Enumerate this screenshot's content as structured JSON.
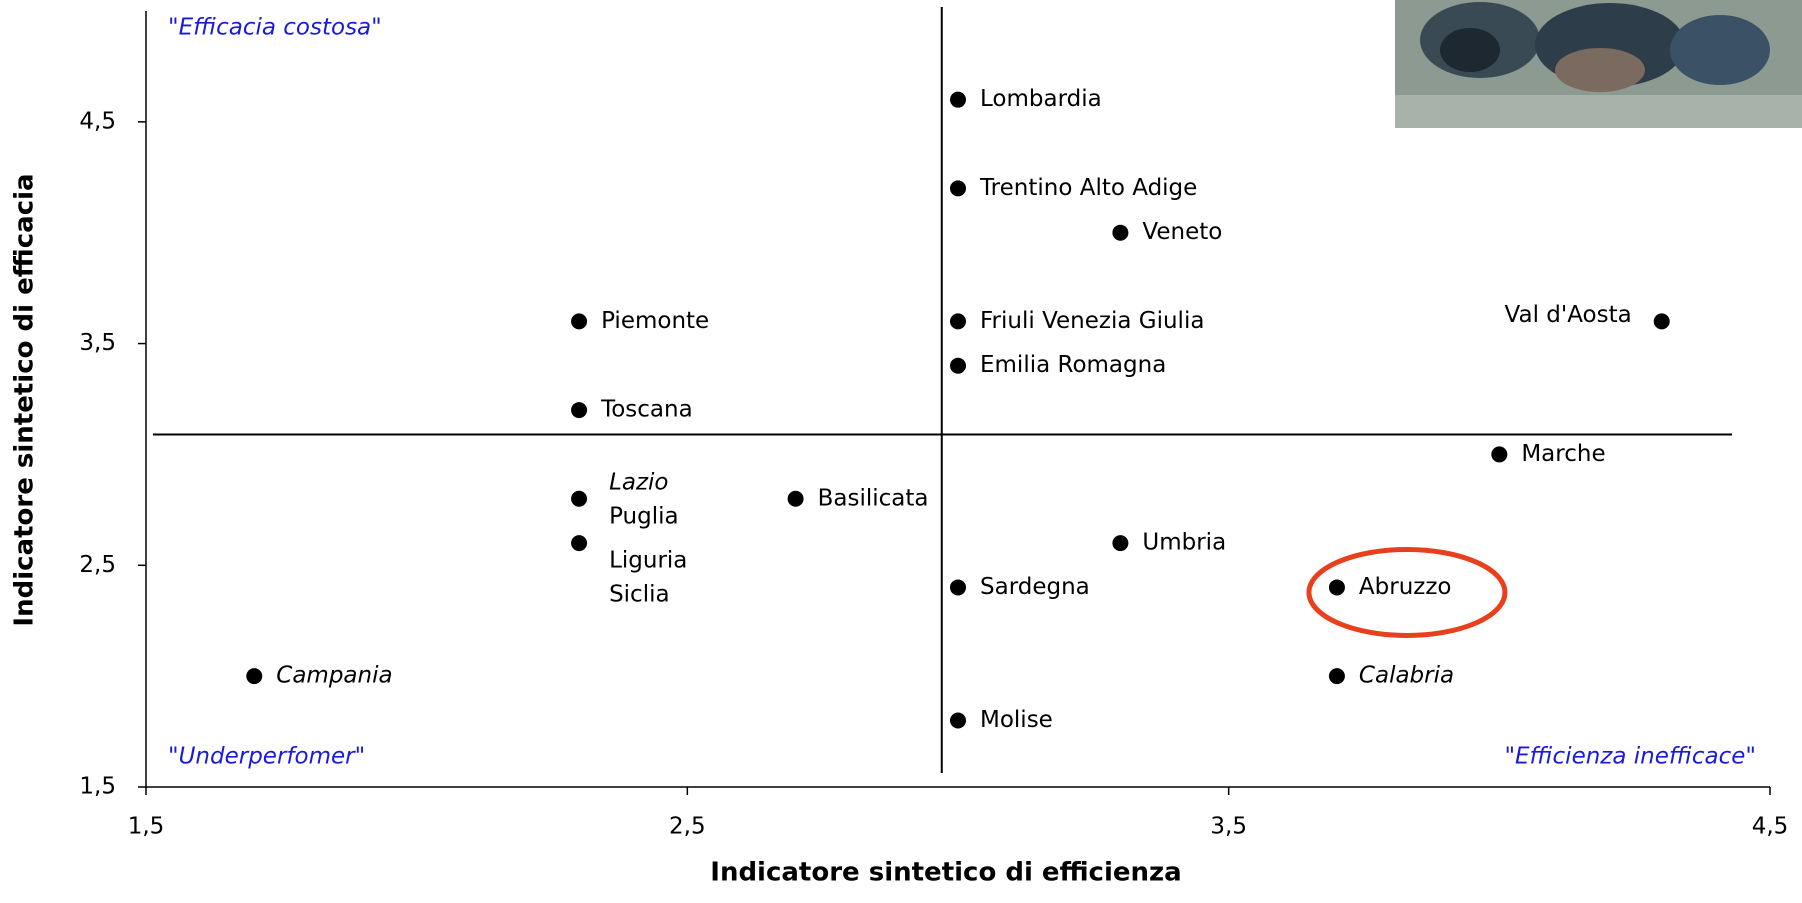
{
  "chart_data": {
    "type": "scatter",
    "x_label": "Indicatore sintetico di efficienza",
    "y_label": "Indicatore sintetico di efficacia",
    "xlim": [
      1.5,
      4.5
    ],
    "ylim": [
      1.5,
      5
    ],
    "xticks": [
      {
        "value": 1.5,
        "label": "1,5"
      },
      {
        "value": 2.5,
        "label": "2,5"
      },
      {
        "value": 3.5,
        "label": "3,5"
      },
      {
        "value": 4.5,
        "label": "4,5"
      }
    ],
    "yticks": [
      {
        "value": 1.5,
        "label": "1,5"
      },
      {
        "value": 2.5,
        "label": "2,5"
      },
      {
        "value": 3.5,
        "label": "3,5"
      },
      {
        "value": 4.5,
        "label": "4,5"
      }
    ],
    "color": "#000000",
    "quadrant_lines": {
      "x": 2.97,
      "y": 3.09
    },
    "quadrant_labels": {
      "top_left": "\"Efficacia costosa\"",
      "bottom_left": "\"Underperfomer\"",
      "bottom_right": "\"Efficienza inefficace\"",
      "color": "#1a1adc"
    },
    "points": [
      {
        "x": 3.0,
        "y": 4.6,
        "labels": [
          {
            "text": "Lombardia"
          }
        ]
      },
      {
        "x": 3.0,
        "y": 4.2,
        "labels": [
          {
            "text": "Trentino Alto Adige"
          }
        ]
      },
      {
        "x": 3.3,
        "y": 4.0,
        "labels": [
          {
            "text": "Veneto"
          }
        ]
      },
      {
        "x": 3.0,
        "y": 3.6,
        "labels": [
          {
            "text": "Friuli Venezia Giulia"
          }
        ]
      },
      {
        "x": 3.0,
        "y": 3.4,
        "labels": [
          {
            "text": "Emilia Romagna"
          }
        ]
      },
      {
        "x": 4.3,
        "y": 3.6,
        "labels": [
          {
            "text": "Val d'Aosta"
          }
        ]
      },
      {
        "x": 2.3,
        "y": 3.6,
        "labels": [
          {
            "text": "Piemonte"
          }
        ]
      },
      {
        "x": 2.3,
        "y": 3.2,
        "labels": [
          {
            "text": "Toscana"
          }
        ]
      },
      {
        "x": 4.0,
        "y": 3.0,
        "labels": [
          {
            "text": "Marche"
          }
        ]
      },
      {
        "x": 2.3,
        "y": 2.8,
        "labels": [
          {
            "text": "Lazio",
            "italic": true
          },
          {
            "text": "Puglia"
          }
        ]
      },
      {
        "x": 2.3,
        "y": 2.6,
        "labels": [
          {
            "text": "Liguria"
          },
          {
            "text": "Siclia"
          }
        ]
      },
      {
        "x": 2.7,
        "y": 2.8,
        "labels": [
          {
            "text": "Basilicata"
          }
        ]
      },
      {
        "x": 3.3,
        "y": 2.6,
        "labels": [
          {
            "text": "Umbria"
          }
        ]
      },
      {
        "x": 3.0,
        "y": 2.4,
        "labels": [
          {
            "text": "Sardegna"
          }
        ]
      },
      {
        "x": 3.7,
        "y": 2.4,
        "labels": [
          {
            "text": "Abruzzo"
          }
        ]
      },
      {
        "x": 3.7,
        "y": 2.0,
        "labels": [
          {
            "text": "Calabria",
            "italic": true
          }
        ]
      },
      {
        "x": 1.7,
        "y": 2.0,
        "labels": [
          {
            "text": "Campania",
            "italic": true
          }
        ]
      },
      {
        "x": 3.0,
        "y": 1.8,
        "labels": [
          {
            "text": "Molise"
          }
        ]
      }
    ],
    "highlight": {
      "point": 14,
      "color": "#e8401c"
    }
  }
}
